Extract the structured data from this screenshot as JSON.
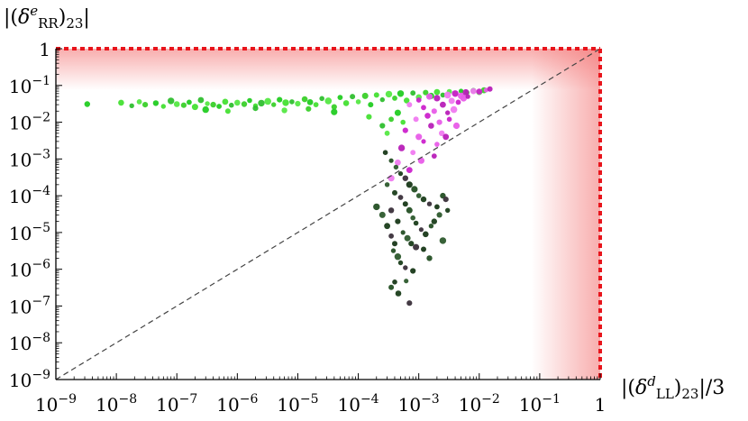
{
  "chart_data": {
    "type": "scatter",
    "title": "",
    "xlabel": {
      "prefix": "|(",
      "symbol": "δ",
      "superscript": "d",
      "subscript": "LL",
      "suffix": ")",
      "sub2": "23",
      "tail": "|/3"
    },
    "ylabel": {
      "prefix": "|(",
      "symbol": "δ",
      "superscript": "e",
      "subscript": "RR",
      "suffix": ")",
      "sub2": "23",
      "tail": "|"
    },
    "xscale": "log",
    "yscale": "log",
    "xlim": [
      1e-09,
      1
    ],
    "ylim": [
      1e-09,
      1
    ],
    "x_ticks": [
      {
        "value": 1e-09,
        "base": "10",
        "exp": "−9"
      },
      {
        "value": 1e-08,
        "base": "10",
        "exp": "−8"
      },
      {
        "value": 1e-07,
        "base": "10",
        "exp": "−7"
      },
      {
        "value": 1e-06,
        "base": "10",
        "exp": "−6"
      },
      {
        "value": 1e-05,
        "base": "10",
        "exp": "−5"
      },
      {
        "value": 0.0001,
        "base": "10",
        "exp": "−4"
      },
      {
        "value": 0.001,
        "base": "10",
        "exp": "−3"
      },
      {
        "value": 0.01,
        "base": "10",
        "exp": "−2"
      },
      {
        "value": 0.1,
        "base": "10",
        "exp": "−1"
      },
      {
        "value": 1,
        "base": "1",
        "exp": ""
      }
    ],
    "y_ticks": [
      {
        "value": 1e-09,
        "base": "10",
        "exp": "−9"
      },
      {
        "value": 1e-08,
        "base": "10",
        "exp": "−8"
      },
      {
        "value": 1e-07,
        "base": "10",
        "exp": "−7"
      },
      {
        "value": 1e-06,
        "base": "10",
        "exp": "−6"
      },
      {
        "value": 1e-05,
        "base": "10",
        "exp": "−5"
      },
      {
        "value": 0.0001,
        "base": "10",
        "exp": "−4"
      },
      {
        "value": 0.001,
        "base": "10",
        "exp": "−3"
      },
      {
        "value": 0.01,
        "base": "10",
        "exp": "−2"
      },
      {
        "value": 0.1,
        "base": "10",
        "exp": "−1"
      },
      {
        "value": 1,
        "base": "1",
        "exp": ""
      }
    ],
    "grid": false,
    "diagonal_line": {
      "style": "dashed",
      "color": "#444444",
      "from": [
        1e-09,
        1e-09
      ],
      "to": [
        1,
        1
      ]
    },
    "bound_lines": [
      {
        "orientation": "horizontal",
        "value": 1,
        "style": "dotted",
        "color": "#e8141b"
      },
      {
        "orientation": "vertical",
        "value": 1,
        "style": "dotted",
        "color": "#e8141b"
      }
    ],
    "excluded_region_color": "#f26a6a",
    "series": [
      {
        "color": "#33dd22",
        "color_variants": [
          "#22cc22",
          "#44e033",
          "#2fbf2f",
          "#55e844",
          "#3ad02a"
        ],
        "points": [
          [
            3.3e-09,
            0.031
          ],
          [
            1.2e-08,
            0.034
          ],
          [
            1.8e-08,
            0.028
          ],
          [
            2.4e-08,
            0.036
          ],
          [
            3e-08,
            0.03
          ],
          [
            4.5e-08,
            0.033
          ],
          [
            6e-08,
            0.027
          ],
          [
            8e-08,
            0.038
          ],
          [
            1e-07,
            0.031
          ],
          [
            1.3e-07,
            0.029
          ],
          [
            1.6e-07,
            0.035
          ],
          [
            2e-07,
            0.026
          ],
          [
            2.5e-07,
            0.04
          ],
          [
            3.2e-07,
            0.032
          ],
          [
            4e-07,
            0.03
          ],
          [
            5e-07,
            0.027
          ],
          [
            6.3e-07,
            0.036
          ],
          [
            8e-07,
            0.029
          ],
          [
            1e-06,
            0.034
          ],
          [
            1.3e-06,
            0.031
          ],
          [
            1.6e-06,
            0.039
          ],
          [
            2e-06,
            0.028
          ],
          [
            2.5e-06,
            0.033
          ],
          [
            3.2e-06,
            0.037
          ],
          [
            4e-06,
            0.03
          ],
          [
            5e-06,
            0.041
          ],
          [
            6.3e-06,
            0.034
          ],
          [
            8e-06,
            0.036
          ],
          [
            1e-05,
            0.032
          ],
          [
            1.3e-05,
            0.042
          ],
          [
            1.6e-05,
            0.035
          ],
          [
            2e-05,
            0.03
          ],
          [
            2.5e-05,
            0.044
          ],
          [
            3.2e-05,
            0.038
          ],
          [
            4e-05,
            0.026
          ],
          [
            5e-05,
            0.047
          ],
          [
            6.3e-05,
            0.033
          ],
          [
            8e-05,
            0.05
          ],
          [
            0.0001,
            0.036
          ],
          [
            0.00013,
            0.052
          ],
          [
            0.00016,
            0.03
          ],
          [
            0.0002,
            0.055
          ],
          [
            0.00025,
            0.041
          ],
          [
            0.00032,
            0.058
          ],
          [
            0.0004,
            0.045
          ],
          [
            0.0005,
            0.06
          ],
          [
            0.00063,
            0.039
          ],
          [
            0.0008,
            0.062
          ],
          [
            0.001,
            0.048
          ],
          [
            0.0013,
            0.064
          ],
          [
            0.0016,
            0.052
          ],
          [
            0.002,
            0.066
          ],
          [
            0.0025,
            0.055
          ],
          [
            0.0032,
            0.068
          ],
          [
            0.004,
            0.06
          ],
          [
            0.005,
            0.07
          ],
          [
            0.0063,
            0.064
          ],
          [
            0.008,
            0.072
          ],
          [
            0.01,
            0.066
          ],
          [
            0.012,
            0.074
          ],
          [
            3e-07,
            0.022
          ],
          [
            7e-07,
            0.02
          ],
          [
            2e-06,
            0.024
          ],
          [
            6e-06,
            0.021
          ],
          [
            1.5e-05,
            0.023
          ],
          [
            4e-05,
            0.019
          ],
          [
            0.00015,
            0.014
          ],
          [
            0.00025,
            0.008
          ],
          [
            0.0003,
            0.005
          ],
          [
            0.00035,
            0.012
          ],
          [
            0.00045,
            0.018
          ],
          [
            0.00055,
            0.01
          ]
        ]
      },
      {
        "color": "#dd33dd",
        "color_variants": [
          "#cc22cc",
          "#e85ce8",
          "#b81fb8",
          "#f07af0"
        ],
        "points": [
          [
            0.001,
            0.04
          ],
          [
            0.0015,
            0.05
          ],
          [
            0.002,
            0.045
          ],
          [
            0.003,
            0.055
          ],
          [
            0.004,
            0.06
          ],
          [
            0.005,
            0.052
          ],
          [
            0.006,
            0.065
          ],
          [
            0.008,
            0.07
          ],
          [
            0.01,
            0.068
          ],
          [
            0.013,
            0.075
          ],
          [
            0.015,
            0.08
          ],
          [
            0.0007,
            0.03
          ],
          [
            0.0012,
            0.025
          ],
          [
            0.0018,
            0.02
          ],
          [
            0.0025,
            0.03
          ],
          [
            0.0035,
            0.038
          ],
          [
            0.0045,
            0.035
          ],
          [
            0.0055,
            0.045
          ],
          [
            0.0065,
            0.05
          ],
          [
            0.0009,
            0.012
          ],
          [
            0.0014,
            0.015
          ],
          [
            0.0022,
            0.01
          ],
          [
            0.003,
            0.018
          ],
          [
            0.0038,
            0.022
          ],
          [
            0.0006,
            0.006
          ],
          [
            0.001,
            0.004
          ],
          [
            0.0016,
            0.008
          ],
          [
            0.0024,
            0.005
          ],
          [
            0.0032,
            0.012
          ],
          [
            0.0042,
            0.008
          ],
          [
            0.00052,
            0.002
          ],
          [
            0.0008,
            0.0015
          ],
          [
            0.0012,
            0.003
          ],
          [
            0.002,
            0.0025
          ],
          [
            0.0028,
            0.004
          ],
          [
            0.00045,
            0.0008
          ],
          [
            0.0007,
            0.0005
          ],
          [
            0.0011,
            0.0009
          ],
          [
            0.0018,
            0.0012
          ],
          [
            0.00035,
            0.0003
          ]
        ]
      },
      {
        "color": "#1f4a1f",
        "color_variants": [
          "#183818",
          "#244f24",
          "#2d5a2d",
          "#1a3d1a",
          "#3a2f3a"
        ],
        "points": [
          [
            0.00028,
            0.0015
          ],
          [
            0.00035,
            0.0009
          ],
          [
            0.00042,
            0.0006
          ],
          [
            0.0005,
            0.0004
          ],
          [
            0.0006,
            0.0003
          ],
          [
            0.0007,
            0.0002
          ],
          [
            0.00085,
            0.00015
          ],
          [
            0.001,
            0.0001
          ],
          [
            0.0012,
            8e-05
          ],
          [
            0.0015,
            6e-05
          ],
          [
            0.002,
            5e-05
          ],
          [
            0.0025,
            0.0001
          ],
          [
            0.0003,
            0.0002
          ],
          [
            0.0004,
            0.00012
          ],
          [
            0.0005,
            9e-05
          ],
          [
            0.0006,
            6e-05
          ],
          [
            0.0007,
            4e-05
          ],
          [
            0.0008,
            2.5e-05
          ],
          [
            0.0009,
            1.8e-05
          ],
          [
            0.0011,
            1.2e-05
          ],
          [
            0.0013,
            9e-06
          ],
          [
            0.0016,
            1.5e-05
          ],
          [
            0.0022,
            3e-05
          ],
          [
            0.003,
            4e-05
          ],
          [
            0.00035,
            4e-05
          ],
          [
            0.00045,
            2e-05
          ],
          [
            0.00055,
            1e-05
          ],
          [
            0.00065,
            7e-06
          ],
          [
            0.00075,
            5e-06
          ],
          [
            0.0009,
            4e-06
          ],
          [
            0.0012,
            3.5e-06
          ],
          [
            0.0002,
            5e-05
          ],
          [
            0.00025,
            3e-05
          ],
          [
            0.0003,
            1.5e-05
          ],
          [
            0.00035,
            8e-06
          ],
          [
            0.0004,
            5e-06
          ],
          [
            0.00038,
            3.2e-06
          ],
          [
            0.00045,
            2.2e-06
          ],
          [
            0.0005,
            1.5e-06
          ],
          [
            0.0006,
            1.1e-06
          ],
          [
            0.0004,
            4.5e-07
          ],
          [
            0.00035,
            3.2e-07
          ],
          [
            0.00062,
            4.8e-07
          ],
          [
            0.00046,
            2.2e-07
          ],
          [
            0.0007,
            1.2e-07
          ],
          [
            0.0008,
            9e-07
          ],
          [
            0.0015,
            2e-06
          ],
          [
            0.0025,
            6e-06
          ],
          [
            0.0018,
            2e-05
          ],
          [
            0.0028,
            8e-05
          ]
        ]
      }
    ]
  }
}
